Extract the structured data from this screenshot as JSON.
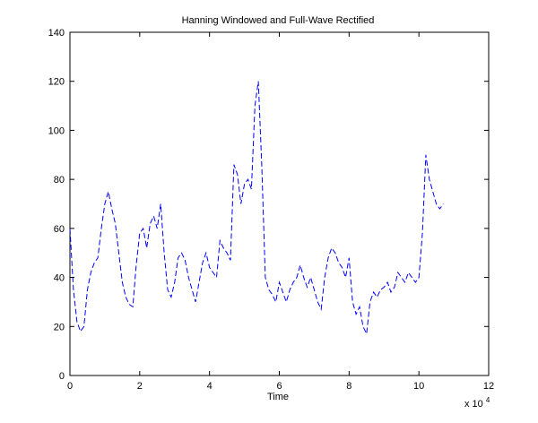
{
  "chart_data": {
    "type": "line",
    "title": "Hanning Windowed and Full-Wave Rectified",
    "xlabel": "Time",
    "ylabel": "",
    "x_multiplier_label": "x 10",
    "x_multiplier_exponent": "4",
    "xlim": [
      0,
      12
    ],
    "ylim": [
      0,
      140
    ],
    "xticks": [
      "0",
      "2",
      "4",
      "6",
      "8",
      "10",
      "12"
    ],
    "yticks": [
      "0",
      "20",
      "40",
      "60",
      "80",
      "100",
      "120",
      "140"
    ],
    "grid": false,
    "series": [
      {
        "color": "#0000ff",
        "line_style": "dashed",
        "x": [
          0,
          0.1,
          0.2,
          0.3,
          0.4,
          0.5,
          0.6,
          0.7,
          0.8,
          0.9,
          1.0,
          1.1,
          1.2,
          1.3,
          1.4,
          1.5,
          1.6,
          1.7,
          1.8,
          1.9,
          2.0,
          2.1,
          2.2,
          2.3,
          2.4,
          2.5,
          2.6,
          2.7,
          2.8,
          2.9,
          3.0,
          3.1,
          3.2,
          3.3,
          3.4,
          3.5,
          3.6,
          3.7,
          3.8,
          3.9,
          4.0,
          4.1,
          4.2,
          4.3,
          4.4,
          4.5,
          4.6,
          4.7,
          4.8,
          4.9,
          5.0,
          5.1,
          5.2,
          5.3,
          5.4,
          5.5,
          5.6,
          5.7,
          5.8,
          5.9,
          6.0,
          6.1,
          6.2,
          6.3,
          6.4,
          6.5,
          6.6,
          6.7,
          6.8,
          6.9,
          7.0,
          7.1,
          7.2,
          7.3,
          7.4,
          7.5,
          7.6,
          7.7,
          7.8,
          7.9,
          8.0,
          8.1,
          8.2,
          8.3,
          8.4,
          8.5,
          8.6,
          8.7,
          8.8,
          8.9,
          9.0,
          9.1,
          9.2,
          9.3,
          9.4,
          9.5,
          9.6,
          9.7,
          9.8,
          9.9,
          10.0,
          10.1,
          10.2,
          10.3,
          10.4,
          10.5,
          10.6,
          10.7
        ],
        "y": [
          60,
          35,
          22,
          18,
          20,
          35,
          42,
          46,
          48,
          60,
          70,
          75,
          68,
          62,
          50,
          38,
          32,
          29,
          28,
          45,
          58,
          60,
          52,
          62,
          65,
          60,
          70,
          50,
          35,
          32,
          38,
          48,
          50,
          47,
          40,
          35,
          30,
          38,
          46,
          50,
          44,
          42,
          40,
          55,
          52,
          50,
          47,
          86,
          82,
          70,
          78,
          80,
          76,
          110,
          120,
          85,
          40,
          35,
          33,
          30,
          38,
          34,
          30,
          35,
          38,
          40,
          45,
          40,
          36,
          40,
          35,
          30,
          27,
          40,
          48,
          52,
          50,
          46,
          44,
          40,
          48,
          30,
          25,
          28,
          20,
          17,
          30,
          34,
          32,
          35,
          36,
          38,
          34,
          36,
          42,
          40,
          38,
          42,
          40,
          38,
          40,
          58,
          90,
          80,
          75,
          70,
          68,
          70
        ]
      }
    ]
  }
}
